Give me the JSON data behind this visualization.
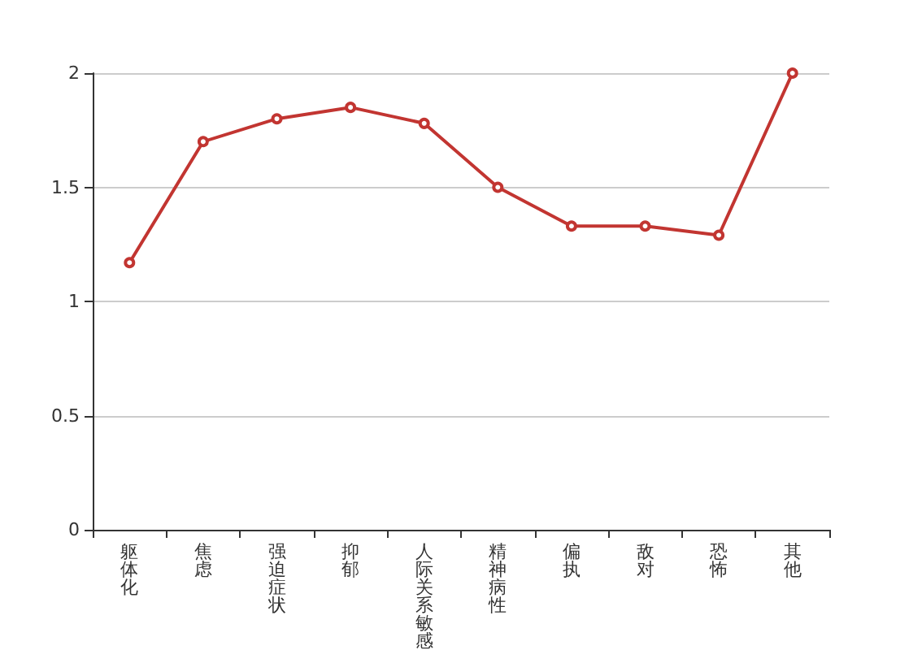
{
  "chart_data": {
    "type": "line",
    "categories": [
      "躯体化",
      "焦虑",
      "强迫症状",
      "抑郁",
      "人际关系敏感",
      "精神病性",
      "偏执",
      "敌对",
      "恐怖",
      "其他"
    ],
    "series": [
      {
        "color": "#c23531",
        "values": [
          1.17,
          1.7,
          1.8,
          1.85,
          1.78,
          1.5,
          1.33,
          1.33,
          1.29,
          2.0
        ]
      }
    ],
    "ylim": [
      0,
      2
    ],
    "yticks": [
      0,
      0.5,
      1,
      1.5,
      2
    ],
    "grid": "y",
    "marker": "circle",
    "line_style": "solid"
  }
}
